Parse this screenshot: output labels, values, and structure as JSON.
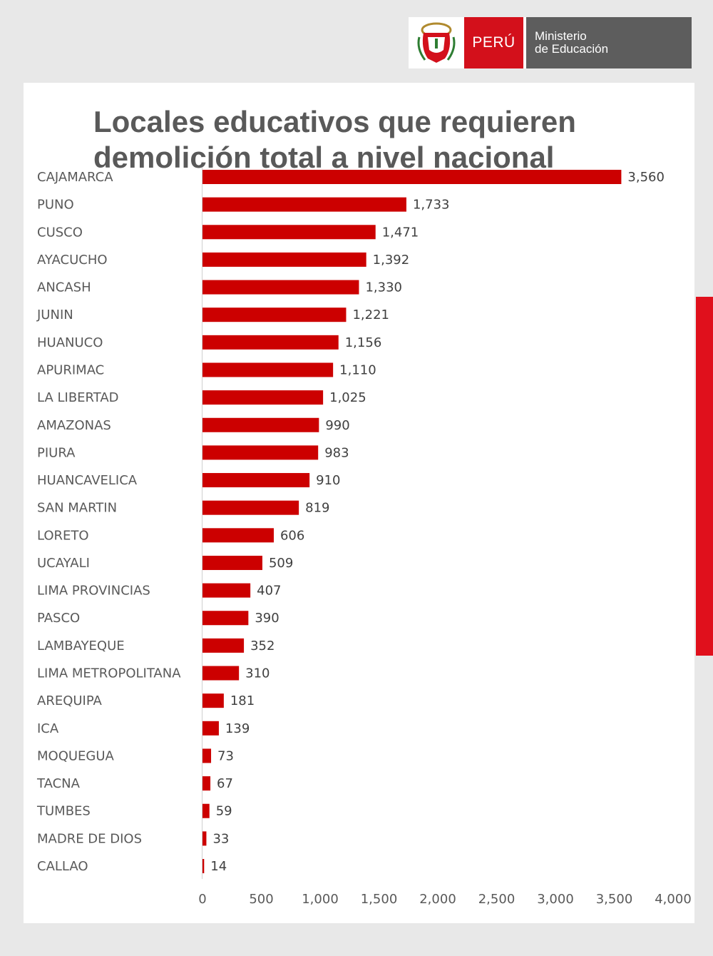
{
  "header": {
    "logo_country": "PERÚ",
    "logo_ministry_line1": "Ministerio",
    "logo_ministry_line2": "de Educación",
    "accent_color": "#d3101b",
    "ministry_bg_color": "#5d5d5d",
    "shield_icon": "peru-coat-of-arms-icon"
  },
  "chart_data": {
    "type": "bar",
    "orientation": "horizontal",
    "title_line1": "Locales educativos que requieren",
    "title_line2": "demolición total a nivel nacional",
    "categories": [
      "CAJAMARCA",
      "PUNO",
      "CUSCO",
      "AYACUCHO",
      "ANCASH",
      "JUNIN",
      "HUANUCO",
      "APURIMAC",
      "LA LIBERTAD",
      "AMAZONAS",
      "PIURA",
      "HUANCAVELICA",
      "SAN MARTIN",
      "LORETO",
      "UCAYALI",
      "LIMA PROVINCIAS",
      "PASCO",
      "LAMBAYEQUE",
      "LIMA METROPOLITANA",
      "AREQUIPA",
      "ICA",
      "MOQUEGUA",
      "TACNA",
      "TUMBES",
      "MADRE DE DIOS",
      "CALLAO"
    ],
    "values": [
      3560,
      1733,
      1471,
      1392,
      1330,
      1221,
      1156,
      1110,
      1025,
      990,
      983,
      910,
      819,
      606,
      509,
      407,
      390,
      352,
      310,
      181,
      139,
      73,
      67,
      59,
      33,
      14
    ],
    "value_labels": [
      "3,560",
      "1,733",
      "1,471",
      "1,392",
      "1,330",
      "1,221",
      "1,156",
      "1,110",
      "1,025",
      "990",
      "983",
      "910",
      "819",
      "606",
      "509",
      "407",
      "390",
      "352",
      "310",
      "181",
      "139",
      "73",
      "67",
      "59",
      "33",
      "14"
    ],
    "x_ticks": [
      0,
      500,
      1000,
      1500,
      2000,
      2500,
      3000,
      3500,
      4000
    ],
    "x_tick_labels": [
      "0",
      "500",
      "1,000",
      "1,500",
      "2,000",
      "2,500",
      "3,000",
      "3,500",
      "4,000"
    ],
    "xlim": [
      0,
      4000
    ],
    "xlabel": "",
    "ylabel": "",
    "grid": false,
    "legend": "none",
    "bar_color": "#cc0000"
  }
}
